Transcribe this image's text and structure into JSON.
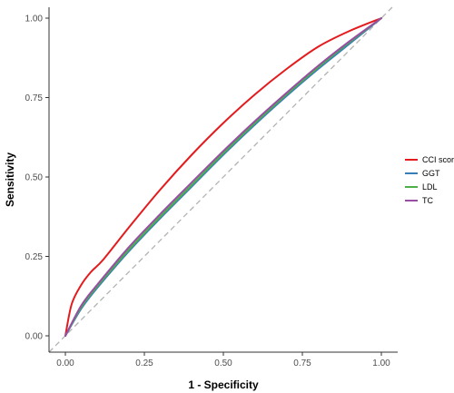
{
  "chart_data": {
    "type": "line",
    "title": "",
    "xlabel": "1 - Specificity",
    "ylabel": "Sensitivity",
    "xlim": [
      0,
      1
    ],
    "ylim": [
      0,
      1
    ],
    "x_ticks": [
      "0.00",
      "0.25",
      "0.50",
      "0.75",
      "1.00"
    ],
    "y_ticks": [
      "0.00",
      "0.25",
      "0.50",
      "0.75",
      "1.00"
    ],
    "grid": false,
    "legend_position": "right",
    "reference_line": {
      "x": [
        0,
        1
      ],
      "y": [
        0,
        1
      ],
      "color": "#b3b3b3",
      "style": "dashed"
    },
    "series": [
      {
        "name": "CCI score",
        "color": "#e41a1c",
        "x": [
          0,
          0.02,
          0.05,
          0.08,
          0.12,
          0.2,
          0.3,
          0.4,
          0.5,
          0.6,
          0.7,
          0.8,
          0.9,
          1.0
        ],
        "y": [
          0,
          0.1,
          0.16,
          0.2,
          0.24,
          0.34,
          0.46,
          0.57,
          0.67,
          0.76,
          0.84,
          0.91,
          0.96,
          1.0
        ]
      },
      {
        "name": "GGT",
        "color": "#377eb8",
        "x": [
          0,
          0.05,
          0.1,
          0.2,
          0.3,
          0.4,
          0.5,
          0.6,
          0.7,
          0.8,
          0.9,
          1.0
        ],
        "y": [
          0,
          0.085,
          0.15,
          0.265,
          0.37,
          0.47,
          0.57,
          0.665,
          0.755,
          0.84,
          0.92,
          1.0
        ]
      },
      {
        "name": "LDL",
        "color": "#4daf4a",
        "x": [
          0,
          0.05,
          0.1,
          0.2,
          0.3,
          0.4,
          0.5,
          0.6,
          0.7,
          0.8,
          0.9,
          1.0
        ],
        "y": [
          0,
          0.09,
          0.155,
          0.27,
          0.375,
          0.475,
          0.575,
          0.67,
          0.76,
          0.845,
          0.925,
          1.0
        ]
      },
      {
        "name": "TC",
        "color": "#984ea3",
        "x": [
          0,
          0.05,
          0.1,
          0.2,
          0.3,
          0.4,
          0.5,
          0.6,
          0.7,
          0.8,
          0.9,
          1.0
        ],
        "y": [
          0,
          0.095,
          0.16,
          0.278,
          0.383,
          0.483,
          0.582,
          0.676,
          0.765,
          0.85,
          0.928,
          1.0
        ]
      }
    ]
  }
}
